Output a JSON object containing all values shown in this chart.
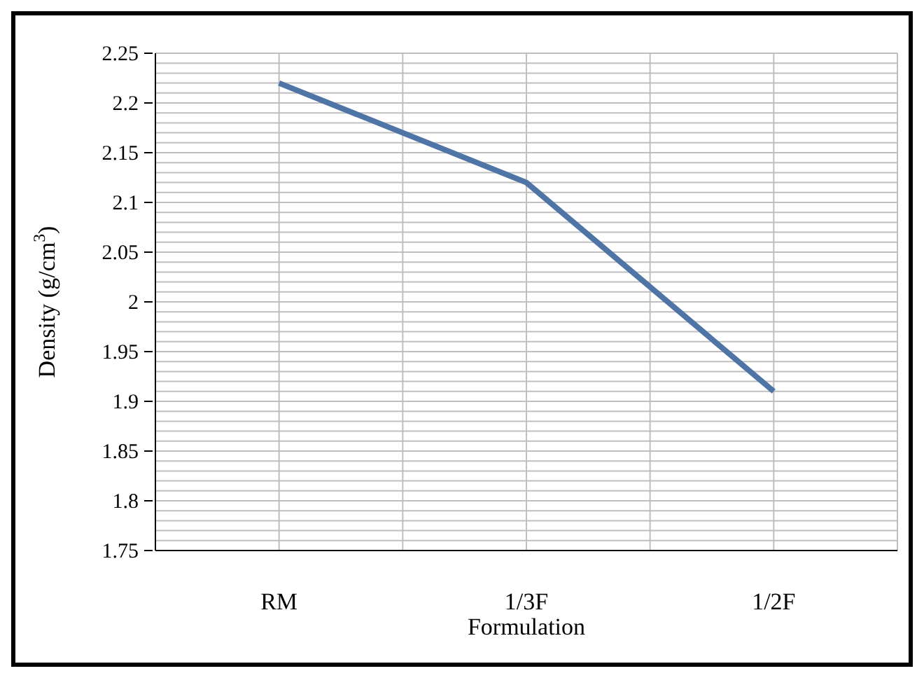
{
  "chart_data": {
    "type": "line",
    "xlabel": "Formulation",
    "ylabel": "Density (g/cm$^{3}$)",
    "categories": [
      "RM",
      "1/3F",
      "1/2F"
    ],
    "series": [
      {
        "color": "#4f74a6",
        "values": [
          2.22,
          2.12,
          1.91
        ]
      }
    ],
    "ylim": [
      1.75,
      2.25
    ],
    "yticks": [
      1.75,
      {
        "value": 1.76,
        "label": null
      },
      {
        "value": 1.77,
        "label": null
      },
      {
        "value": 1.78,
        "label": null
      },
      {
        "value": 1.79,
        "label": null
      },
      1.8,
      {
        "value": 1.81,
        "label": null
      },
      {
        "value": 1.82,
        "label": null
      },
      {
        "value": 1.83,
        "label": null
      },
      {
        "value": 1.84,
        "label": null
      },
      1.85,
      {
        "value": 1.86,
        "label": null
      },
      {
        "value": 1.87,
        "label": null
      },
      {
        "value": 1.88,
        "label": null
      },
      {
        "value": 1.89,
        "label": null
      },
      1.9,
      {
        "value": 1.91,
        "label": null
      },
      {
        "value": 1.92,
        "label": null
      },
      {
        "value": 1.93,
        "label": null
      },
      {
        "value": 1.94,
        "label": null
      },
      1.95,
      {
        "value": 1.96,
        "label": null
      },
      {
        "value": 1.97,
        "label": null
      },
      {
        "value": 1.98,
        "label": null
      },
      {
        "value": 1.99,
        "label": null
      },
      2,
      {
        "value": 2.01,
        "label": null
      },
      {
        "value": 2.02,
        "label": null
      },
      {
        "value": 2.03,
        "label": null
      },
      {
        "value": 2.04,
        "label": null
      },
      2.05,
      {
        "value": 2.06,
        "label": null
      },
      {
        "value": 2.07,
        "label": null
      },
      {
        "value": 2.08,
        "label": null
      },
      {
        "value": 2.09,
        "label": null
      },
      2.1,
      {
        "value": 2.11,
        "label": null
      },
      {
        "value": 2.12,
        "label": null
      },
      {
        "value": 2.13,
        "label": null
      },
      {
        "value": 2.14,
        "label": null
      },
      2.15,
      {
        "value": 2.16,
        "label": null
      },
      {
        "value": 2.17,
        "label": null
      },
      {
        "value": 2.18,
        "label": null
      },
      {
        "value": 2.19,
        "label": null
      },
      2.2,
      {
        "value": 2.21,
        "label": null
      },
      {
        "value": 2.22,
        "label": null
      },
      {
        "value": 2.23,
        "label": null
      },
      {
        "value": 2.24,
        "label": null
      },
      2.25
    ],
    "grid": true,
    "marker": "none",
    "line_style": "solid"
  }
}
